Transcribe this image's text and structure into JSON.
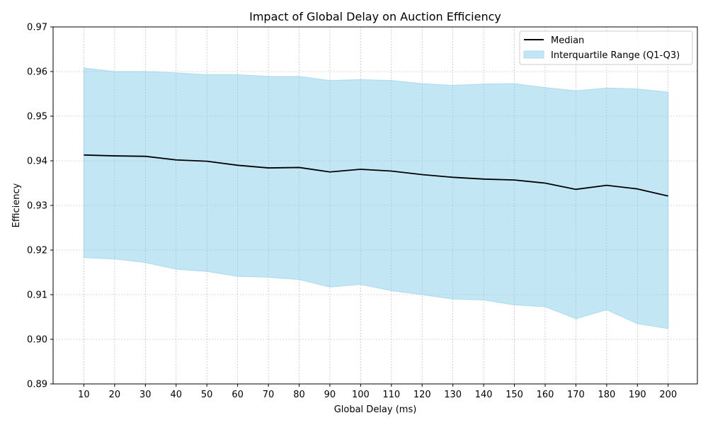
{
  "chart_data": {
    "type": "line",
    "title": "Impact of Global Delay on Auction Efficiency",
    "xlabel": "Global Delay (ms)",
    "ylabel": "Efficiency",
    "x": [
      10,
      20,
      30,
      40,
      50,
      60,
      70,
      80,
      90,
      100,
      110,
      120,
      130,
      140,
      150,
      160,
      170,
      180,
      190,
      200
    ],
    "xlim": [
      0,
      209.5
    ],
    "ylim": [
      0.89,
      0.97
    ],
    "yticks": [
      0.89,
      0.9,
      0.91,
      0.92,
      0.93,
      0.94,
      0.95,
      0.96,
      0.97
    ],
    "ytick_labels": [
      "0.89",
      "0.90",
      "0.91",
      "0.92",
      "0.93",
      "0.94",
      "0.95",
      "0.96",
      "0.97"
    ],
    "grid": true,
    "legend_position": "top-right",
    "series": [
      {
        "name": "Median",
        "kind": "line",
        "color": "#000000",
        "values": [
          0.9413,
          0.9411,
          0.941,
          0.9402,
          0.9399,
          0.939,
          0.9384,
          0.9385,
          0.9375,
          0.9381,
          0.9377,
          0.9369,
          0.9363,
          0.9359,
          0.9357,
          0.935,
          0.9336,
          0.9345,
          0.9337,
          0.9321
        ]
      },
      {
        "name": "Interquartile Range (Q1-Q3)",
        "kind": "band",
        "color": "#87ceeb",
        "lower": [
          0.9183,
          0.918,
          0.9172,
          0.9157,
          0.9152,
          0.9141,
          0.9139,
          0.9134,
          0.9117,
          0.9123,
          0.9109,
          0.91,
          0.909,
          0.9088,
          0.9077,
          0.9073,
          0.9046,
          0.9066,
          0.9035,
          0.9024
        ],
        "upper": [
          0.9608,
          0.96,
          0.96,
          0.9597,
          0.9593,
          0.9593,
          0.9589,
          0.9589,
          0.958,
          0.9582,
          0.958,
          0.9573,
          0.9569,
          0.9572,
          0.9573,
          0.9564,
          0.9557,
          0.9563,
          0.9561,
          0.9554
        ]
      }
    ]
  }
}
